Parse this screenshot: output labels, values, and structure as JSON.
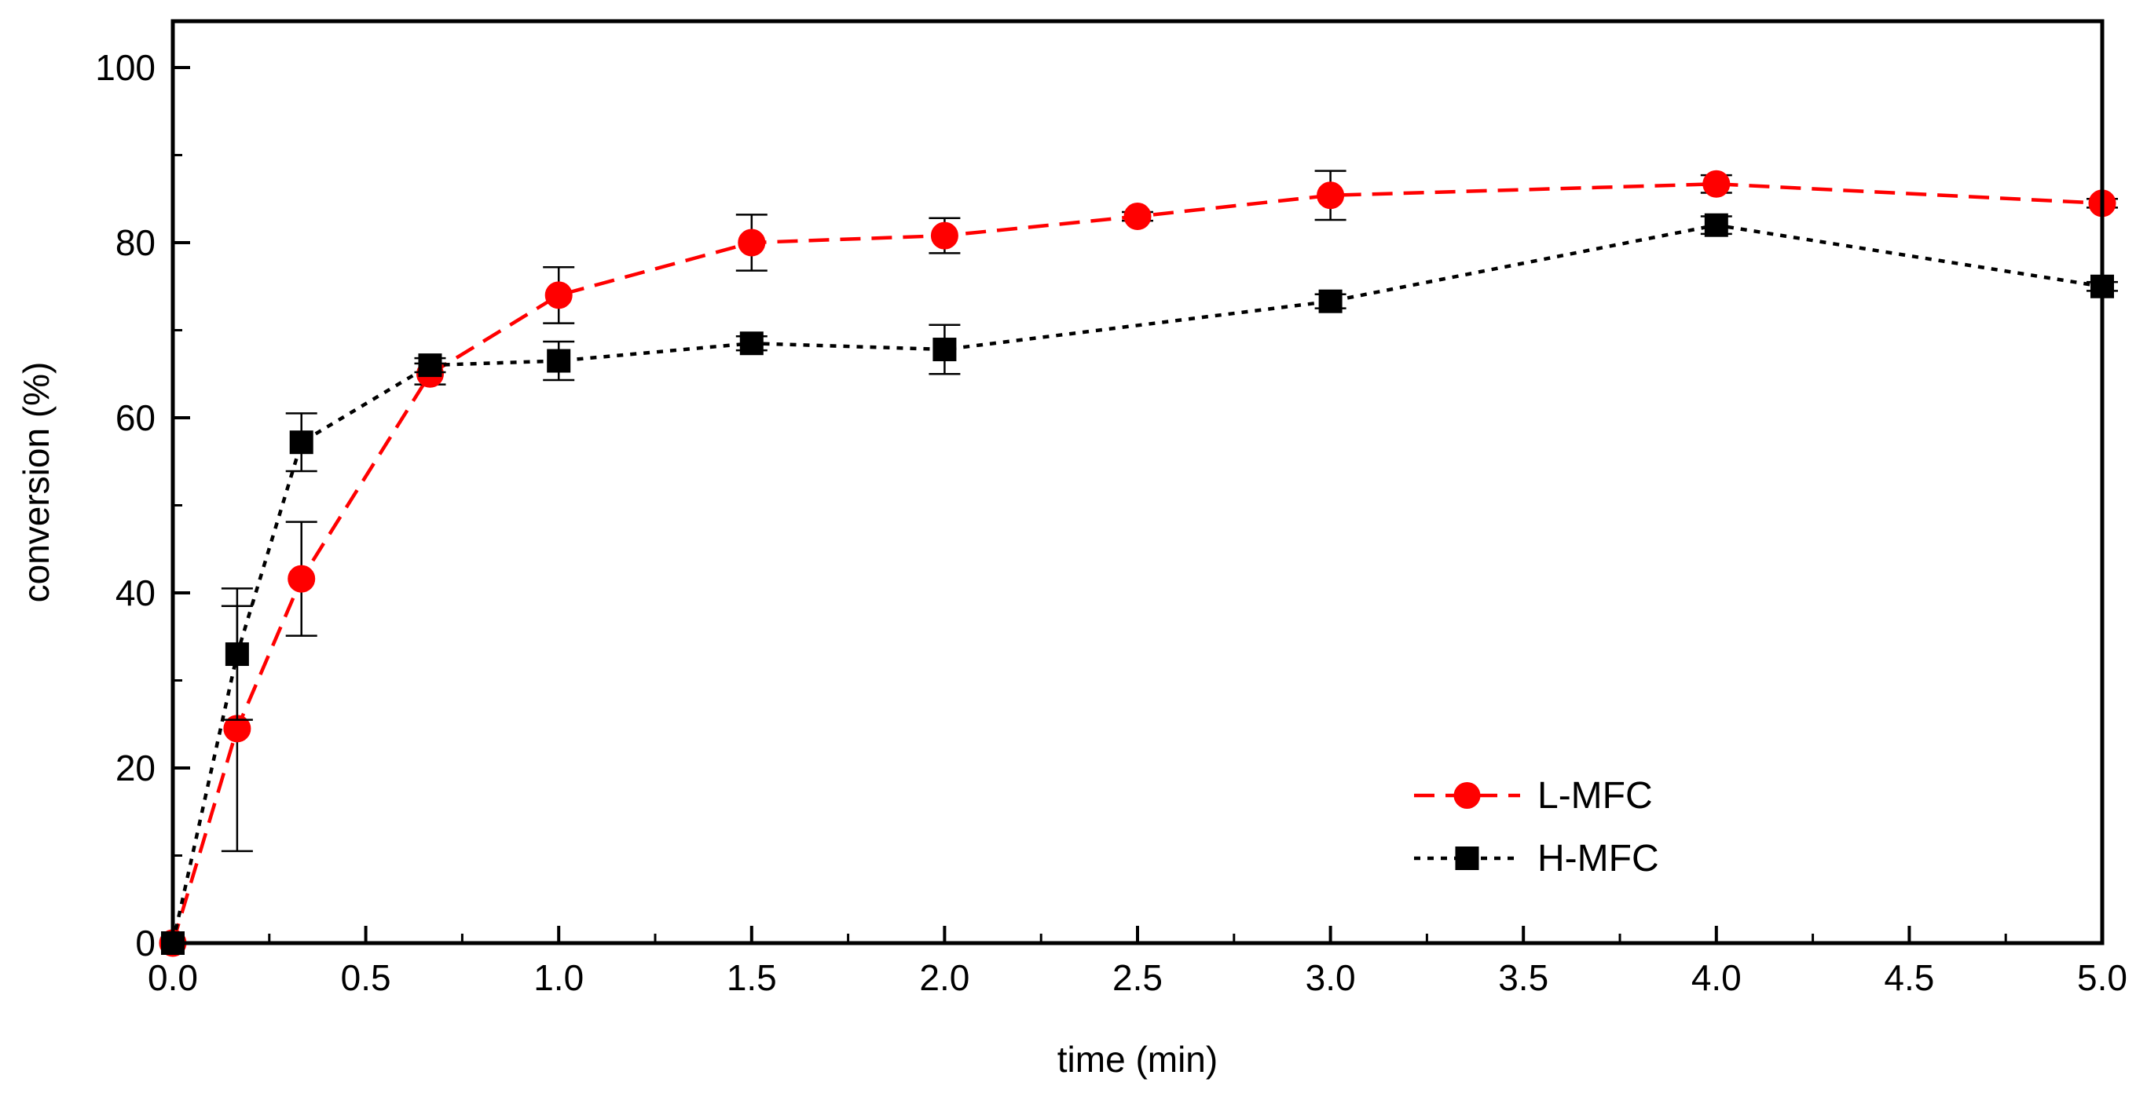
{
  "chart_data": {
    "type": "line",
    "title": "",
    "xlabel": "time (min)",
    "ylabel": "conversion (%)",
    "xlim": [
      0,
      5
    ],
    "ylim": [
      0,
      100
    ],
    "x_ticks": [
      0.0,
      0.5,
      1.0,
      1.5,
      2.0,
      2.5,
      3.0,
      3.5,
      4.0,
      4.5,
      5.0
    ],
    "x_tick_labels": [
      "0.0",
      "0.5",
      "1.0",
      "1.5",
      "2.0",
      "2.5",
      "3.0",
      "3.5",
      "4.0",
      "4.5",
      "5.0"
    ],
    "y_ticks": [
      0,
      20,
      40,
      60,
      80,
      100
    ],
    "y_tick_labels": [
      "0",
      "20",
      "40",
      "60",
      "80",
      "100"
    ],
    "grid": false,
    "legend_position": "bottom-right",
    "series": [
      {
        "name": "L-MFC",
        "color": "#ff0000",
        "marker": "circle",
        "line_style": "dashed",
        "x": [
          0,
          0.1667,
          0.3333,
          0.6667,
          1.0,
          1.5,
          2.0,
          2.5,
          3.0,
          4.0,
          5.0
        ],
        "y": [
          0,
          24.5,
          41.6,
          65.0,
          74.0,
          80.0,
          80.8,
          83.0,
          85.4,
          86.7,
          84.5
        ],
        "err": [
          0,
          14.0,
          6.5,
          1.2,
          3.2,
          3.2,
          2.0,
          0.5,
          2.8,
          1.0,
          0.5
        ]
      },
      {
        "name": "H-MFC",
        "color": "#000000",
        "marker": "square",
        "line_style": "dotted",
        "x": [
          0,
          0.1667,
          0.3333,
          0.6667,
          1.0,
          1.5,
          2.0,
          3.0,
          4.0,
          5.0
        ],
        "y": [
          0,
          33.0,
          57.2,
          66.0,
          66.5,
          68.5,
          67.8,
          73.3,
          82.0,
          75.0
        ],
        "err": [
          0,
          7.5,
          3.3,
          0.8,
          2.2,
          0.8,
          2.8,
          0.8,
          1.0,
          0.5
        ]
      }
    ]
  }
}
